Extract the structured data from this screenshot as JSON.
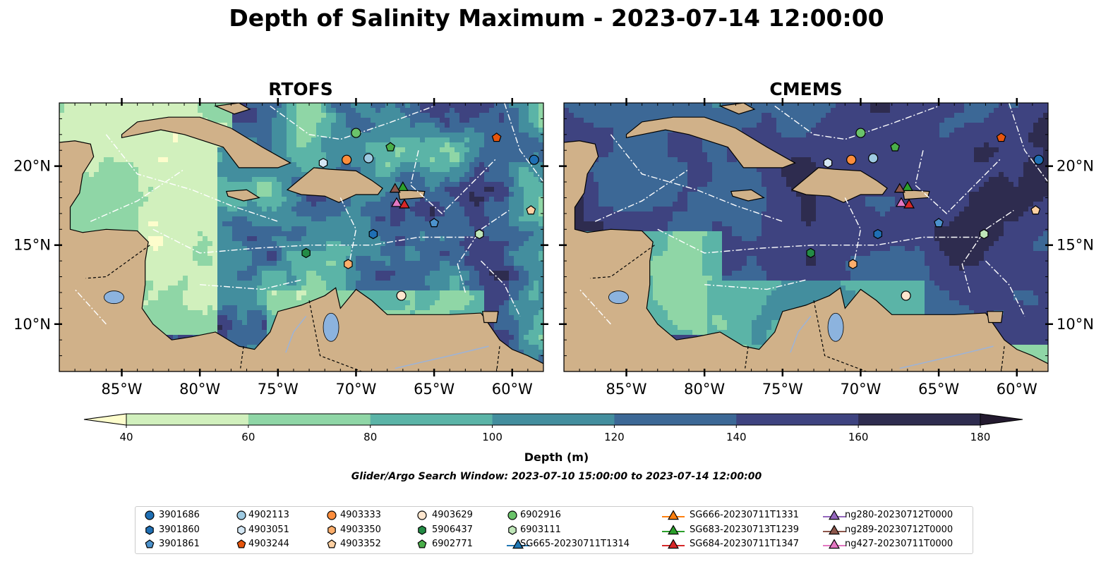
{
  "title": "Depth of Salinity Maximum - 2023-07-14 12:00:00",
  "panels": [
    {
      "title": "RTOFS",
      "variant": "rtofs"
    },
    {
      "title": "CMEMS",
      "variant": "cmems"
    }
  ],
  "map": {
    "lon_range": [
      -89,
      -58
    ],
    "lat_range": [
      7,
      24
    ],
    "lon_ticks": [
      -85,
      -80,
      -75,
      -70,
      -65,
      -60
    ],
    "lon_tick_labels": [
      "85°W",
      "80°W",
      "75°W",
      "70°W",
      "65°W",
      "60°W"
    ],
    "lat_ticks": [
      10,
      15,
      20
    ],
    "lat_tick_labels": [
      "10°N",
      "15°N",
      "20°N"
    ],
    "land_color": "#d0b189",
    "lake_color": "#8cb3de",
    "river_color": "#9cb3d8"
  },
  "colorbar": {
    "label": "Depth (m)",
    "ticks": [
      "40",
      "60",
      "80",
      "100",
      "120",
      "140",
      "160",
      "180"
    ],
    "levels": [
      40,
      60,
      80,
      100,
      120,
      140,
      160,
      180
    ],
    "colors": [
      "#fdfdcc",
      "#d1f0bd",
      "#8fd6a6",
      "#5bb4a7",
      "#438e9e",
      "#3c6896",
      "#3e4380",
      "#2e2c4f",
      "#231a2f"
    ],
    "extend": "both"
  },
  "search_window": "Glider/Argo Search Window: 2023-07-10 15:00:00 to 2023-07-14 12:00:00",
  "legend": [
    {
      "label": "3901686",
      "marker": "circle",
      "color": "#1f6fb4"
    },
    {
      "label": "3901860",
      "marker": "hexagon",
      "color": "#1f6fb4"
    },
    {
      "label": "3901861",
      "marker": "pentagon",
      "color": "#4c92cc"
    },
    {
      "label": "4902113",
      "marker": "circle",
      "color": "#9ecae1"
    },
    {
      "label": "4903051",
      "marker": "hexagon",
      "color": "#d4e7f4"
    },
    {
      "label": "4903244",
      "marker": "pentagon",
      "color": "#e6550d"
    },
    {
      "label": "4903333",
      "marker": "circle",
      "color": "#fd8d3c"
    },
    {
      "label": "4903350",
      "marker": "hexagon",
      "color": "#fdae6b"
    },
    {
      "label": "4903352",
      "marker": "pentagon",
      "color": "#fdd0a2"
    },
    {
      "label": "4903629",
      "marker": "circle",
      "color": "#fee6ce"
    },
    {
      "label": "5906437",
      "marker": "hexagon",
      "color": "#238b45"
    },
    {
      "label": "6902771",
      "marker": "pentagon",
      "color": "#4aaf4a"
    },
    {
      "label": "6902916",
      "marker": "circle",
      "color": "#6ac36a"
    },
    {
      "label": "6903111",
      "marker": "hexagon",
      "color": "#bfe6b8"
    },
    {
      "label": "SG665-20230711T1314",
      "marker": "triangle-line",
      "color": "#1f77b4"
    },
    {
      "label": "SG666-20230711T1331",
      "marker": "triangle-line",
      "color": "#ff7f0e"
    },
    {
      "label": "SG683-20230713T1239",
      "marker": "triangle-line",
      "color": "#2ca02c"
    },
    {
      "label": "SG684-20230711T1347",
      "marker": "triangle-line",
      "color": "#d62728"
    },
    {
      "label": "ng280-20230712T0000",
      "marker": "triangle-line",
      "color": "#9467bd"
    },
    {
      "label": "ng289-20230712T0000",
      "marker": "triangle-line",
      "color": "#8c564b"
    },
    {
      "label": "ng427-20230711T0000",
      "marker": "triangle-line",
      "color": "#e377c2"
    }
  ],
  "observations": [
    {
      "id": "3901686",
      "lon": -58.6,
      "lat": 20.4
    },
    {
      "id": "3901860",
      "lon": -68.9,
      "lat": 15.7
    },
    {
      "id": "3901861",
      "lon": -65.0,
      "lat": 16.4
    },
    {
      "id": "4902113",
      "lon": -69.2,
      "lat": 20.5
    },
    {
      "id": "4903051",
      "lon": -72.1,
      "lat": 20.2
    },
    {
      "id": "4903244",
      "lon": -61.0,
      "lat": 21.8
    },
    {
      "id": "4903333",
      "lon": -70.6,
      "lat": 20.4
    },
    {
      "id": "4903350",
      "lon": -70.5,
      "lat": 13.8
    },
    {
      "id": "4903352",
      "lon": -58.8,
      "lat": 17.2
    },
    {
      "id": "4903629",
      "lon": -67.1,
      "lat": 11.8
    },
    {
      "id": "5906437",
      "lon": -73.2,
      "lat": 14.5
    },
    {
      "id": "6902771",
      "lon": -67.8,
      "lat": 21.2
    },
    {
      "id": "6902916",
      "lon": -70.0,
      "lat": 22.1
    },
    {
      "id": "6903111",
      "lon": -62.1,
      "lat": 15.7
    },
    {
      "id": "SG683-20230713T1239",
      "lon": -67.0,
      "lat": 18.7
    },
    {
      "id": "ng289-20230712T0000",
      "lon": -67.5,
      "lat": 18.6
    },
    {
      "id": "ng427-20230711T0000",
      "lon": -67.4,
      "lat": 17.7
    },
    {
      "id": "SG684-20230711T1347",
      "lon": -66.9,
      "lat": 17.6
    }
  ]
}
